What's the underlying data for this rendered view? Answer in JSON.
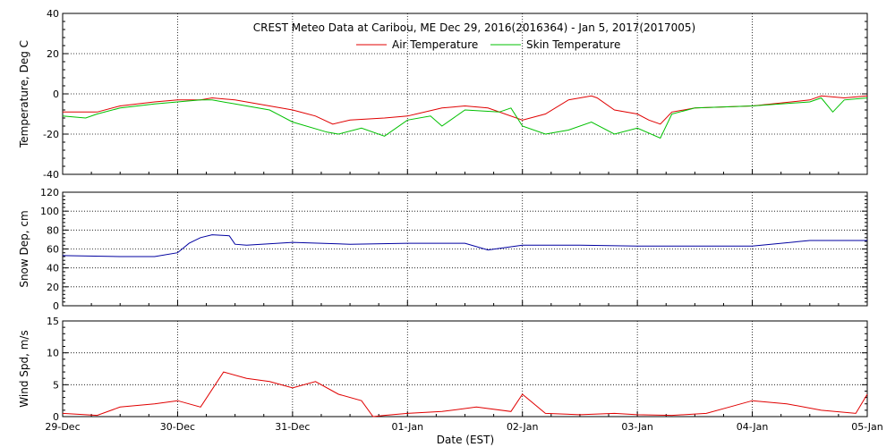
{
  "chart_data": [
    {
      "type": "line",
      "title": "CREST Meteo Data at Caribou, ME   Dec 29, 2016(2016364) - Jan  5, 2017(2017005)",
      "ylabel": "Temperature, Deg C",
      "ylim": [
        -40,
        40
      ],
      "yticks": [
        -40,
        -20,
        0,
        20,
        40
      ],
      "xlim": [
        0,
        7
      ],
      "grid": true,
      "legend": "top-center",
      "series": [
        {
          "name": "Air Temperature",
          "color": "#e00000",
          "x": [
            0,
            0.3,
            0.5,
            0.8,
            1.0,
            1.2,
            1.3,
            1.5,
            2.0,
            2.2,
            2.35,
            2.5,
            2.8,
            3.0,
            3.3,
            3.5,
            3.7,
            4.0,
            4.2,
            4.4,
            4.6,
            4.65,
            4.8,
            5.0,
            5.1,
            5.2,
            5.3,
            5.5,
            6.0,
            6.5,
            6.6,
            6.8,
            7.0
          ],
          "y": [
            -9,
            -9,
            -6,
            -4,
            -3,
            -3,
            -2,
            -3,
            -8,
            -11,
            -15,
            -13,
            -12,
            -11,
            -7,
            -6,
            -7,
            -13,
            -10,
            -3,
            -1,
            -2,
            -8,
            -10,
            -13,
            -15,
            -9,
            -7,
            -6,
            -3,
            -1,
            -2,
            -1
          ]
        },
        {
          "name": "Skin Temperature",
          "color": "#00c000",
          "x": [
            0,
            0.2,
            0.3,
            0.5,
            0.8,
            1.0,
            1.2,
            1.3,
            1.5,
            1.8,
            2.0,
            2.3,
            2.4,
            2.6,
            2.8,
            3.0,
            3.2,
            3.3,
            3.5,
            3.8,
            3.9,
            4.0,
            4.2,
            4.4,
            4.6,
            4.8,
            5.0,
            5.2,
            5.3,
            5.5,
            6.0,
            6.5,
            6.6,
            6.7,
            6.8,
            7.0
          ],
          "y": [
            -11,
            -12,
            -10,
            -7,
            -5,
            -4,
            -3,
            -3,
            -5,
            -8,
            -14,
            -19,
            -20,
            -17,
            -21,
            -13,
            -11,
            -16,
            -8,
            -9,
            -7,
            -16,
            -20,
            -18,
            -14,
            -20,
            -17,
            -22,
            -10,
            -7,
            -6,
            -4,
            -2,
            -9,
            -3,
            -2
          ]
        }
      ]
    },
    {
      "type": "line",
      "ylabel": "Snow Dep, cm",
      "ylim": [
        0,
        120
      ],
      "yticks": [
        0,
        20,
        40,
        60,
        80,
        100,
        120
      ],
      "xlim": [
        0,
        7
      ],
      "grid": true,
      "series": [
        {
          "color": "#0000a0",
          "x": [
            0,
            0.5,
            0.8,
            1.0,
            1.1,
            1.2,
            1.3,
            1.45,
            1.5,
            1.6,
            2.0,
            2.5,
            3.0,
            3.5,
            3.7,
            4.0,
            4.5,
            5.0,
            5.5,
            6.0,
            6.5,
            7.0
          ],
          "y": [
            53,
            52,
            52,
            56,
            66,
            72,
            75,
            74,
            65,
            64,
            67,
            65,
            66,
            66,
            59,
            64,
            64,
            63,
            63,
            63,
            69,
            69
          ]
        }
      ]
    },
    {
      "type": "line",
      "ylabel": "Wind Spd, m/s",
      "xlabel": "Date (EST)",
      "ylim": [
        0,
        15
      ],
      "yticks": [
        0,
        5,
        10,
        15
      ],
      "xlim": [
        0,
        7
      ],
      "grid": true,
      "xticks": [
        0,
        1,
        2,
        3,
        4,
        5,
        6,
        7
      ],
      "xticklabels": [
        "29-Dec",
        "30-Dec",
        "31-Dec",
        "01-Jan",
        "02-Jan",
        "03-Jan",
        "04-Jan",
        "05-Jan"
      ],
      "series": [
        {
          "color": "#e00000",
          "x": [
            0,
            0.3,
            0.5,
            0.8,
            1.0,
            1.2,
            1.4,
            1.6,
            1.8,
            2.0,
            2.2,
            2.4,
            2.6,
            2.7,
            2.8,
            3.0,
            3.3,
            3.6,
            3.9,
            4.0,
            4.2,
            4.5,
            4.8,
            5.0,
            5.3,
            5.6,
            5.8,
            6.0,
            6.3,
            6.6,
            6.9,
            7.0
          ],
          "y": [
            0.5,
            0.2,
            1.5,
            2.0,
            2.5,
            1.5,
            7.0,
            6.0,
            5.5,
            4.5,
            5.5,
            3.5,
            2.5,
            0.0,
            0.2,
            0.5,
            0.8,
            1.5,
            0.8,
            3.5,
            0.5,
            0.3,
            0.5,
            0.3,
            0.2,
            0.5,
            1.5,
            2.5,
            2.0,
            1.0,
            0.5,
            3.5
          ]
        }
      ]
    }
  ]
}
